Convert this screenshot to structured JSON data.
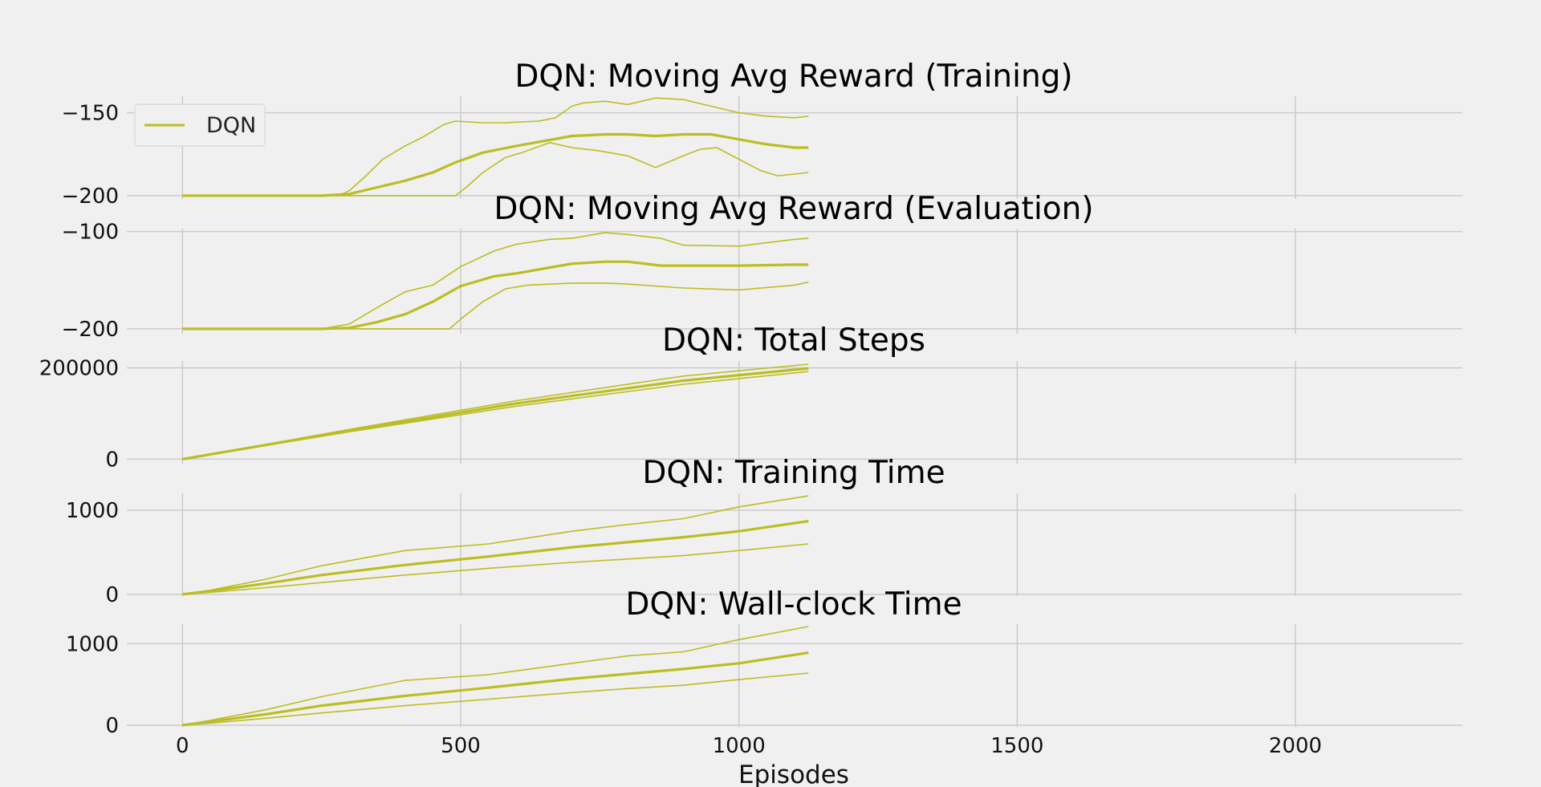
{
  "figure": {
    "xlabel": "Episodes",
    "color": "#bcbd22",
    "background": "#f0f0f0",
    "grid": true
  },
  "chart_data": [
    {
      "type": "line",
      "title": "DQN: Moving Avg Reward (Training)",
      "xlim": [
        -100,
        2300
      ],
      "ylim": [
        -202,
        -140
      ],
      "xticks": [
        0,
        500,
        1000,
        1500,
        2000
      ],
      "yticks": [
        -150,
        -200
      ],
      "ytick_labels": [
        "−150",
        "−200"
      ],
      "legend": {
        "label": "DQN",
        "position": "upper-left"
      },
      "series": [
        {
          "role": "max",
          "x": [
            0,
            280,
            300,
            330,
            360,
            400,
            430,
            470,
            490,
            540,
            580,
            640,
            670,
            700,
            720,
            760,
            800,
            850,
            900,
            950,
            1000,
            1050,
            1100,
            1125
          ],
          "y": [
            -200,
            -200,
            -197,
            -188,
            -178,
            -170,
            -165,
            -157,
            -155,
            -156,
            -156,
            -155,
            -153,
            -146,
            -144,
            -143,
            -145,
            -141,
            -142,
            -146,
            -150,
            -152,
            -153,
            -152
          ]
        },
        {
          "role": "mean",
          "x": [
            0,
            250,
            300,
            350,
            400,
            450,
            490,
            540,
            600,
            650,
            700,
            760,
            800,
            850,
            900,
            950,
            1000,
            1050,
            1100,
            1125
          ],
          "y": [
            -200,
            -200,
            -199,
            -195,
            -191,
            -186,
            -180,
            -174,
            -170,
            -167,
            -164,
            -163,
            -163,
            -164,
            -163,
            -163,
            -166,
            -169,
            -171,
            -171
          ]
        },
        {
          "role": "min",
          "x": [
            0,
            490,
            510,
            540,
            580,
            610,
            660,
            700,
            750,
            800,
            850,
            900,
            930,
            960,
            1000,
            1040,
            1070,
            1100,
            1125
          ],
          "y": [
            -200,
            -200,
            -195,
            -186,
            -177,
            -174,
            -168,
            -171,
            -173,
            -176,
            -183,
            -176,
            -172,
            -171,
            -178,
            -185,
            -188,
            -187,
            -186
          ]
        }
      ]
    },
    {
      "type": "line",
      "title": "DQN: Moving Avg Reward (Evaluation)",
      "xlim": [
        -100,
        2300
      ],
      "ylim": [
        -205,
        -97
      ],
      "xticks": [
        0,
        500,
        1000,
        1500,
        2000
      ],
      "yticks": [
        -100,
        -200
      ],
      "ytick_labels": [
        "−100",
        "−200"
      ],
      "series": [
        {
          "role": "max",
          "x": [
            0,
            250,
            300,
            350,
            400,
            450,
            500,
            560,
            600,
            660,
            700,
            760,
            800,
            860,
            900,
            1000,
            1100,
            1125
          ],
          "y": [
            -200,
            -200,
            -195,
            -178,
            -162,
            -155,
            -136,
            -120,
            -113,
            -108,
            -107,
            -101,
            -103,
            -107,
            -114,
            -115,
            -108,
            -107
          ]
        },
        {
          "role": "mean",
          "x": [
            0,
            250,
            300,
            350,
            400,
            450,
            500,
            560,
            600,
            660,
            700,
            760,
            800,
            860,
            900,
            1000,
            1100,
            1125
          ],
          "y": [
            -200,
            -200,
            -199,
            -193,
            -185,
            -172,
            -156,
            -146,
            -143,
            -137,
            -133,
            -131,
            -131,
            -135,
            -135,
            -135,
            -134,
            -134
          ]
        },
        {
          "role": "min",
          "x": [
            0,
            480,
            500,
            540,
            580,
            620,
            700,
            760,
            800,
            900,
            1000,
            1100,
            1125
          ],
          "y": [
            -200,
            -200,
            -190,
            -172,
            -159,
            -155,
            -153,
            -153,
            -154,
            -158,
            -160,
            -155,
            -152
          ]
        }
      ]
    },
    {
      "type": "line",
      "title": "DQN: Total Steps",
      "xlim": [
        -100,
        2300
      ],
      "ylim": [
        -10000,
        215000
      ],
      "xticks": [
        0,
        500,
        1000,
        1500,
        2000
      ],
      "yticks": [
        200000,
        0
      ],
      "ytick_labels": [
        "200000",
        "0"
      ],
      "series": [
        {
          "role": "max",
          "x": [
            0,
            300,
            600,
            900,
            1125
          ],
          "y": [
            0,
            65000,
            128000,
            182000,
            208000
          ]
        },
        {
          "role": "mean",
          "x": [
            0,
            300,
            600,
            900,
            1125
          ],
          "y": [
            0,
            62000,
            122000,
            172000,
            199000
          ]
        },
        {
          "role": "min",
          "x": [
            0,
            300,
            600,
            900,
            1125
          ],
          "y": [
            0,
            60000,
            116000,
            164000,
            192000
          ]
        }
      ]
    },
    {
      "type": "line",
      "title": "DQN: Training Time",
      "xlim": [
        -100,
        2300
      ],
      "ylim": [
        -20,
        1200
      ],
      "xticks": [
        0,
        500,
        1000,
        1500,
        2000
      ],
      "yticks": [
        1000,
        0
      ],
      "ytick_labels": [
        "1000",
        "0"
      ],
      "series": [
        {
          "role": "max",
          "x": [
            0,
            50,
            150,
            250,
            400,
            550,
            700,
            800,
            900,
            1000,
            1125
          ],
          "y": [
            0,
            50,
            180,
            340,
            520,
            600,
            750,
            830,
            900,
            1040,
            1170
          ]
        },
        {
          "role": "mean",
          "x": [
            0,
            50,
            150,
            250,
            400,
            550,
            700,
            800,
            900,
            1000,
            1125
          ],
          "y": [
            0,
            40,
            130,
            230,
            350,
            450,
            560,
            620,
            680,
            750,
            870
          ]
        },
        {
          "role": "min",
          "x": [
            0,
            50,
            150,
            250,
            400,
            550,
            700,
            800,
            900,
            1000,
            1125
          ],
          "y": [
            0,
            25,
            80,
            140,
            230,
            310,
            380,
            420,
            460,
            520,
            600
          ]
        }
      ]
    },
    {
      "type": "line",
      "title": "DQN: Wall-clock Time",
      "xlim": [
        -100,
        2300
      ],
      "ylim": [
        -20,
        1240
      ],
      "xticks": [
        0,
        500,
        1000,
        1500,
        2000
      ],
      "yticks": [
        1000,
        0
      ],
      "ytick_labels": [
        "1000",
        "0"
      ],
      "series": [
        {
          "role": "max",
          "x": [
            0,
            50,
            150,
            250,
            400,
            550,
            700,
            800,
            900,
            1000,
            1125
          ],
          "y": [
            0,
            60,
            190,
            350,
            550,
            620,
            760,
            850,
            900,
            1050,
            1210
          ]
        },
        {
          "role": "mean",
          "x": [
            0,
            50,
            150,
            250,
            400,
            550,
            700,
            800,
            900,
            1000,
            1125
          ],
          "y": [
            0,
            45,
            135,
            240,
            360,
            460,
            570,
            630,
            690,
            760,
            890
          ]
        },
        {
          "role": "min",
          "x": [
            0,
            50,
            150,
            250,
            400,
            550,
            700,
            800,
            900,
            1000,
            1125
          ],
          "y": [
            0,
            25,
            85,
            150,
            240,
            320,
            400,
            450,
            490,
            560,
            640
          ]
        }
      ]
    }
  ]
}
